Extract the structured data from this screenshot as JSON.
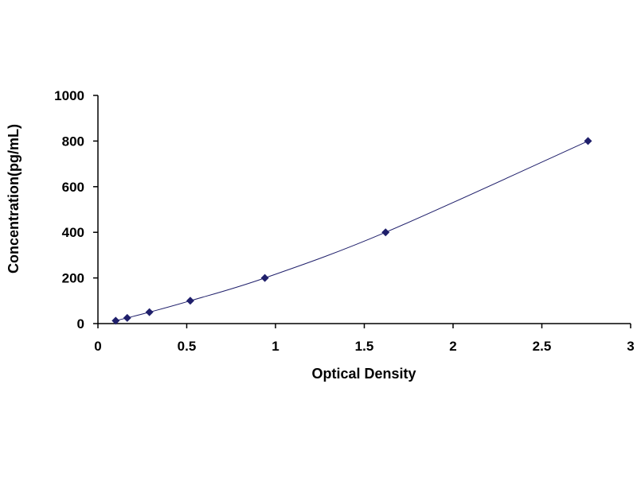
{
  "chart_data": {
    "type": "scatter",
    "title": "",
    "xlabel": "Optical Density",
    "ylabel": "Concentration(pg/mL)",
    "xlim": [
      0,
      3
    ],
    "ylim": [
      0,
      1000
    ],
    "x_ticks": [
      0,
      0.5,
      1,
      1.5,
      2,
      2.5,
      3
    ],
    "y_ticks": [
      0,
      200,
      400,
      600,
      800,
      1000
    ],
    "x_tick_labels": [
      "0",
      "0.5",
      "1",
      "1.5",
      "2",
      "2.5",
      "3"
    ],
    "y_tick_labels": [
      "0",
      "200",
      "400",
      "600",
      "800",
      "1000"
    ],
    "grid": false,
    "legend": "none",
    "trendline": "smooth curve through points",
    "series": [
      {
        "marker": "diamond",
        "color": "#1f1f6b",
        "points": [
          {
            "x": 0.1,
            "y": 12.5
          },
          {
            "x": 0.165,
            "y": 25
          },
          {
            "x": 0.29,
            "y": 50
          },
          {
            "x": 0.52,
            "y": 100
          },
          {
            "x": 0.94,
            "y": 200
          },
          {
            "x": 1.62,
            "y": 400
          },
          {
            "x": 2.76,
            "y": 800
          }
        ]
      }
    ]
  }
}
